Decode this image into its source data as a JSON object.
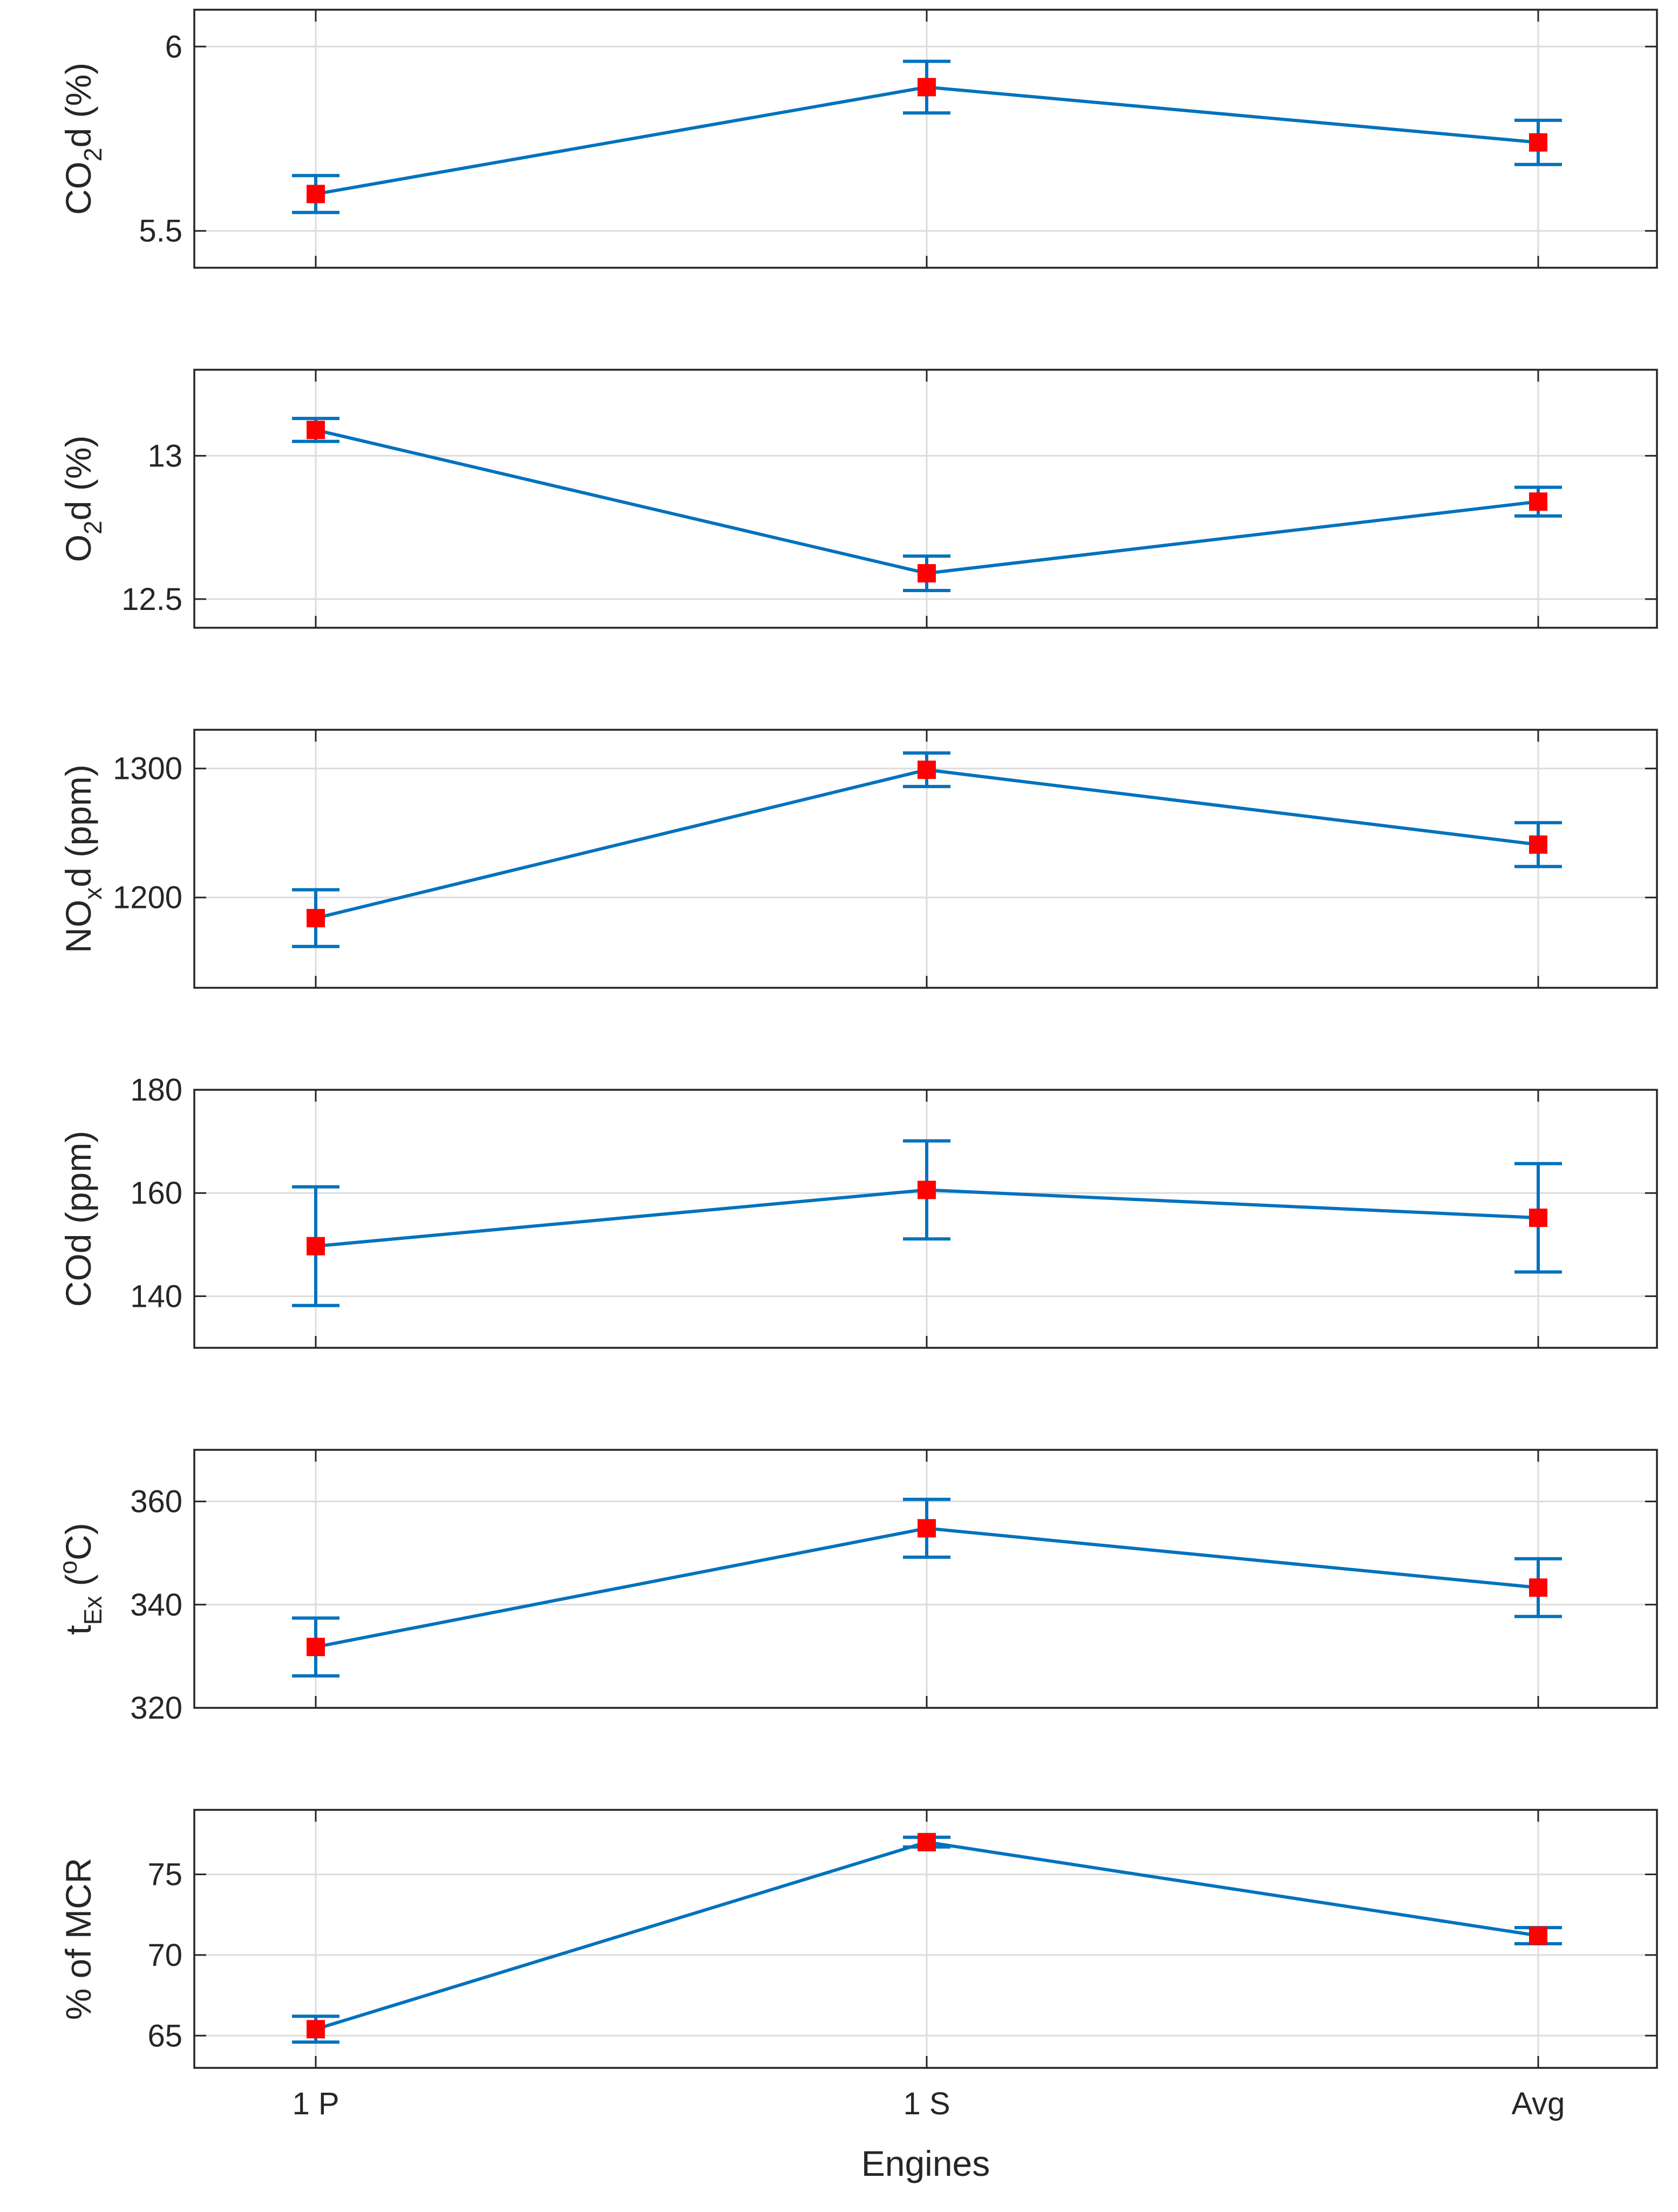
{
  "colors": {
    "line": "#0072BD",
    "marker": "#FF0000",
    "axis": "#262626",
    "grid": "#DCDCDC"
  },
  "chart_data": {
    "type": "line",
    "layout": "stacked-subplots",
    "categories": [
      "1 P",
      "1 S",
      "Avg"
    ],
    "xlabel": "Engines",
    "grid": true,
    "subplots": [
      {
        "id": "co2",
        "ylabel": {
          "base": "CO",
          "sub": "2",
          "rest": "d (%)"
        },
        "ylim": [
          5.4,
          6.1
        ],
        "yticks": [
          5.5,
          6
        ],
        "ytick_labels": [
          "5.5",
          "6"
        ],
        "values": [
          5.6,
          5.89,
          5.74
        ],
        "errors": [
          0.05,
          0.07,
          0.06
        ]
      },
      {
        "id": "o2",
        "ylabel": {
          "base": "O",
          "sub": "2",
          "rest": "d (%)"
        },
        "ylim": [
          12.4,
          13.3
        ],
        "yticks": [
          12.5,
          13
        ],
        "ytick_labels": [
          "12.5",
          "13"
        ],
        "values": [
          13.09,
          12.59,
          12.84
        ],
        "errors": [
          0.04,
          0.06,
          0.05
        ]
      },
      {
        "id": "nox",
        "ylabel": {
          "base": "NO",
          "sub": "x",
          "rest": "d (ppm)"
        },
        "ylim": [
          1130,
          1330
        ],
        "yticks": [
          1200,
          1300
        ],
        "ytick_labels": [
          "1200",
          "1300"
        ],
        "values": [
          1184,
          1299,
          1241
        ],
        "errors": [
          22,
          13,
          17
        ]
      },
      {
        "id": "co",
        "ylabel": {
          "base": "COd (ppm)",
          "sub": "",
          "rest": ""
        },
        "ylim": [
          130,
          180
        ],
        "yticks": [
          140,
          160,
          180
        ],
        "ytick_labels": [
          "140",
          "160",
          "180"
        ],
        "values": [
          149.7,
          160.6,
          155.2
        ],
        "errors": [
          11.5,
          9.5,
          10.5
        ]
      },
      {
        "id": "tex",
        "ylabel": {
          "base": "t",
          "sub": "Ex",
          "rest": " (",
          "sup": "o",
          "tail": "C)"
        },
        "ylim": [
          320,
          370
        ],
        "yticks": [
          320,
          340,
          360
        ],
        "ytick_labels": [
          "320",
          "340",
          "360"
        ],
        "values": [
          331.8,
          354.8,
          343.3
        ],
        "errors": [
          5.6,
          5.6,
          5.6
        ]
      },
      {
        "id": "mcr",
        "ylabel": {
          "base": "% of MCR",
          "sub": "",
          "rest": ""
        },
        "ylim": [
          63,
          79
        ],
        "yticks": [
          65,
          70,
          75
        ],
        "ytick_labels": [
          "65",
          "70",
          "75"
        ],
        "values": [
          65.4,
          77.0,
          71.2
        ],
        "errors": [
          0.8,
          0.3,
          0.5
        ]
      }
    ]
  }
}
